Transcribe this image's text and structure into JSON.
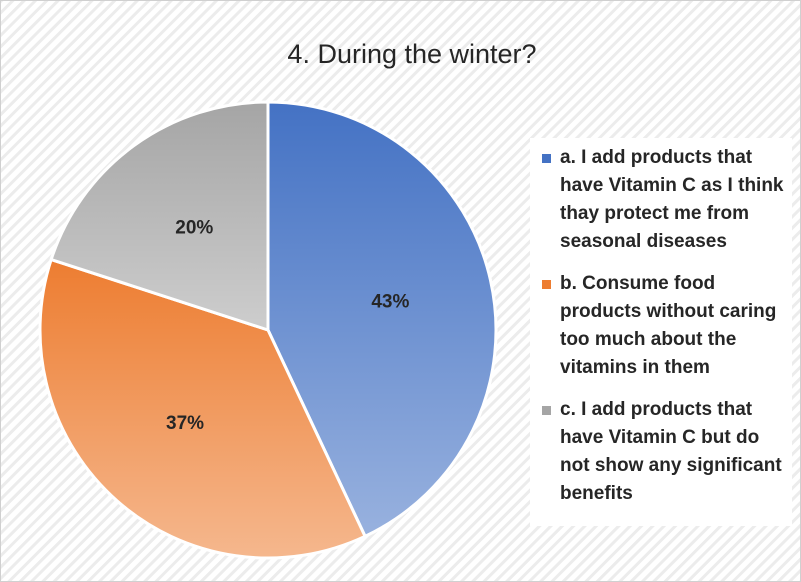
{
  "chart_data": {
    "type": "pie",
    "title": "4. During the winter?",
    "categories": [
      "a. I add products that have Vitamin C as I think thay protect me from seasonal diseases",
      "b. Consume food products without caring too much about the vitamins in them",
      "c. I add products that have Vitamin C but do not show any significant benefits"
    ],
    "values": [
      43,
      37,
      20
    ],
    "value_labels": [
      "43%",
      "37%",
      "20%"
    ],
    "colors": [
      "#4472c4",
      "#ed7d31",
      "#a5a5a5"
    ],
    "legend": "right"
  }
}
